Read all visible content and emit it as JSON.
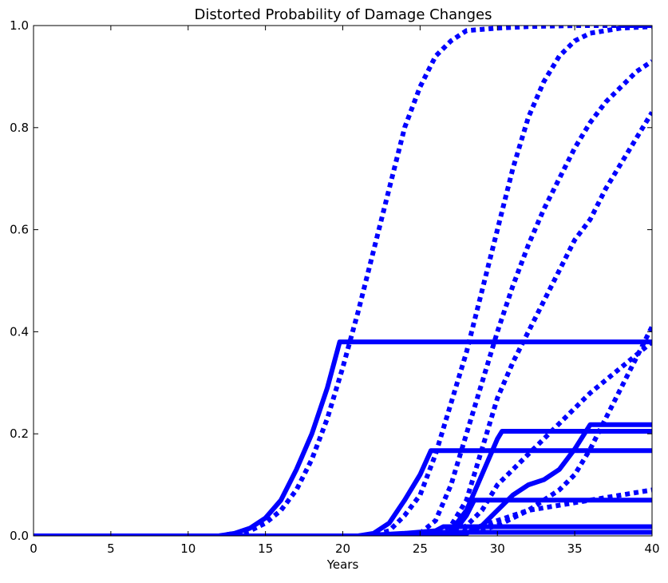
{
  "chart_data": {
    "type": "line",
    "title": "Distorted Probability of Damage Changes",
    "xlabel": "Years",
    "ylabel": "",
    "xlim": [
      0,
      40
    ],
    "ylim": [
      0,
      1
    ],
    "xticks": [
      0,
      5,
      10,
      15,
      20,
      25,
      30,
      35,
      40
    ],
    "yticks": [
      0.0,
      0.2,
      0.4,
      0.6,
      0.8,
      1.0
    ],
    "xtick_labels": [
      "0",
      "5",
      "10",
      "15",
      "20",
      "25",
      "30",
      "35",
      "40"
    ],
    "ytick_labels": [
      "0.0",
      "0.2",
      "0.4",
      "0.6",
      "0.8",
      "1.0"
    ],
    "grid": false,
    "color": "#0000ff",
    "series": [
      {
        "style": "dotted",
        "x": [
          0,
          12,
          14,
          15,
          16,
          17,
          18,
          19,
          20,
          21,
          22,
          23,
          24,
          25,
          26,
          27,
          28,
          30,
          32,
          35,
          40
        ],
        "y": [
          0,
          0,
          0.01,
          0.025,
          0.05,
          0.09,
          0.15,
          0.23,
          0.33,
          0.44,
          0.56,
          0.68,
          0.8,
          0.88,
          0.94,
          0.97,
          0.99,
          0.995,
          0.998,
          1.0,
          1.0
        ]
      },
      {
        "style": "dotted",
        "x": [
          0,
          20,
          21,
          22,
          23,
          24,
          25,
          26,
          27,
          28,
          29,
          30,
          31,
          32,
          33,
          34,
          35,
          36,
          38,
          40
        ],
        "y": [
          0,
          0,
          0,
          0.002,
          0.01,
          0.04,
          0.08,
          0.16,
          0.26,
          0.36,
          0.48,
          0.6,
          0.72,
          0.82,
          0.89,
          0.94,
          0.97,
          0.985,
          0.995,
          0.998
        ]
      },
      {
        "style": "dotted",
        "x": [
          0,
          22,
          24,
          25,
          26,
          27,
          28,
          29,
          30,
          31,
          32,
          33,
          34,
          35,
          36,
          37,
          38,
          39,
          40
        ],
        "y": [
          0,
          0,
          0,
          0.005,
          0.03,
          0.1,
          0.2,
          0.3,
          0.4,
          0.49,
          0.57,
          0.64,
          0.7,
          0.76,
          0.81,
          0.85,
          0.88,
          0.91,
          0.93
        ]
      },
      {
        "style": "dotted",
        "x": [
          0,
          23,
          25,
          26,
          27,
          28,
          29,
          30,
          31,
          32,
          33,
          34,
          35,
          36,
          37,
          38,
          39,
          40
        ],
        "y": [
          0,
          0,
          0,
          0.005,
          0.02,
          0.07,
          0.17,
          0.27,
          0.34,
          0.4,
          0.46,
          0.52,
          0.58,
          0.62,
          0.68,
          0.73,
          0.78,
          0.83
        ]
      },
      {
        "style": "dotted",
        "x": [
          0,
          26,
          27,
          28,
          29,
          30,
          32,
          34,
          36,
          38,
          40
        ],
        "y": [
          0,
          0,
          0.005,
          0.02,
          0.05,
          0.1,
          0.16,
          0.22,
          0.28,
          0.33,
          0.38
        ]
      },
      {
        "style": "dotted",
        "x": [
          0,
          26,
          28,
          30,
          32,
          34,
          35,
          36,
          37,
          38,
          39,
          40
        ],
        "y": [
          0,
          0,
          0.005,
          0.02,
          0.05,
          0.09,
          0.12,
          0.17,
          0.23,
          0.29,
          0.35,
          0.41
        ]
      },
      {
        "style": "dotted",
        "x": [
          0,
          27,
          28,
          29,
          30,
          32,
          34,
          36,
          38,
          40
        ],
        "y": [
          0,
          0,
          0.01,
          0.02,
          0.03,
          0.05,
          0.06,
          0.07,
          0.08,
          0.09
        ]
      },
      {
        "style": "solid",
        "x": [
          0,
          12,
          13,
          14,
          15,
          16,
          17,
          18,
          19,
          19.8,
          20,
          40
        ],
        "y": [
          0,
          0,
          0.005,
          0.015,
          0.035,
          0.07,
          0.13,
          0.2,
          0.29,
          0.38,
          0.38,
          0.38
        ]
      },
      {
        "style": "solid",
        "x": [
          0,
          21,
          22,
          23,
          24,
          25,
          25.7,
          40
        ],
        "y": [
          0,
          0,
          0.005,
          0.025,
          0.07,
          0.12,
          0.167,
          0.167
        ]
      },
      {
        "style": "solid",
        "x": [
          0,
          26.5,
          27,
          28,
          29,
          30,
          30.3,
          40
        ],
        "y": [
          0,
          0,
          0.01,
          0.05,
          0.12,
          0.19,
          0.205,
          0.205
        ]
      },
      {
        "style": "solid",
        "x": [
          0,
          27.5,
          28,
          29,
          30,
          31,
          32,
          33,
          34,
          35,
          36,
          40
        ],
        "y": [
          0,
          0,
          0.005,
          0.02,
          0.05,
          0.08,
          0.1,
          0.11,
          0.13,
          0.17,
          0.218,
          0.218
        ]
      },
      {
        "style": "solid",
        "x": [
          0,
          27,
          28,
          28.5,
          40
        ],
        "y": [
          0,
          0,
          0.04,
          0.07,
          0.07
        ]
      },
      {
        "style": "solid",
        "x": [
          0,
          21,
          24,
          26,
          26.5,
          40
        ],
        "y": [
          0,
          0,
          0.005,
          0.01,
          0.018,
          0.018
        ]
      },
      {
        "style": "solid",
        "x": [
          0,
          22,
          24,
          26,
          40
        ],
        "y": [
          0,
          0,
          0.004,
          0.007,
          0.007
        ]
      }
    ]
  }
}
